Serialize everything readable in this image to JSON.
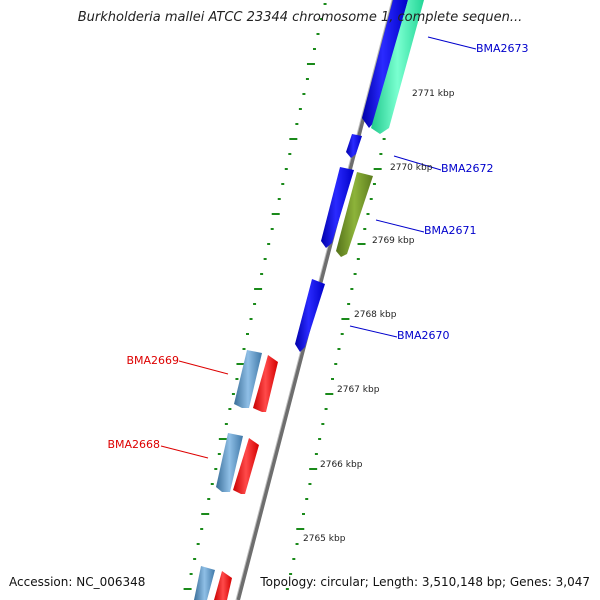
{
  "title": "Burkholderia mallei ATCC 23344 chromosome 1, complete sequen...",
  "footer": {
    "accession": "Accession: NC_006348",
    "summary": "Topology: circular; Length: 3,510,148 bp; Genes: 3,047"
  },
  "colors": {
    "backbone": "#808080",
    "tick_marks": "#1a8a1a",
    "forward_label": "#0000cc",
    "reverse_label": "#dd0000",
    "gene_blue": "#0000ee",
    "gene_teal": "#33e6a6",
    "gene_olive": "#6b8e23",
    "gene_steel": "#4682b4",
    "gene_red": "#ee0000"
  },
  "scale_labels": [
    "2771 kbp",
    "2770 kbp",
    "2769 kbp",
    "2768 kbp",
    "2767 kbp",
    "2766 kbp",
    "2765 kbp"
  ],
  "gene_labels": [
    {
      "name": "BMA2673",
      "strand": "forward"
    },
    {
      "name": "BMA2672",
      "strand": "forward"
    },
    {
      "name": "BMA2671",
      "strand": "forward"
    },
    {
      "name": "BMA2670",
      "strand": "forward"
    },
    {
      "name": "BMA2669",
      "strand": "reverse"
    },
    {
      "name": "BMA2668",
      "strand": "reverse"
    }
  ]
}
